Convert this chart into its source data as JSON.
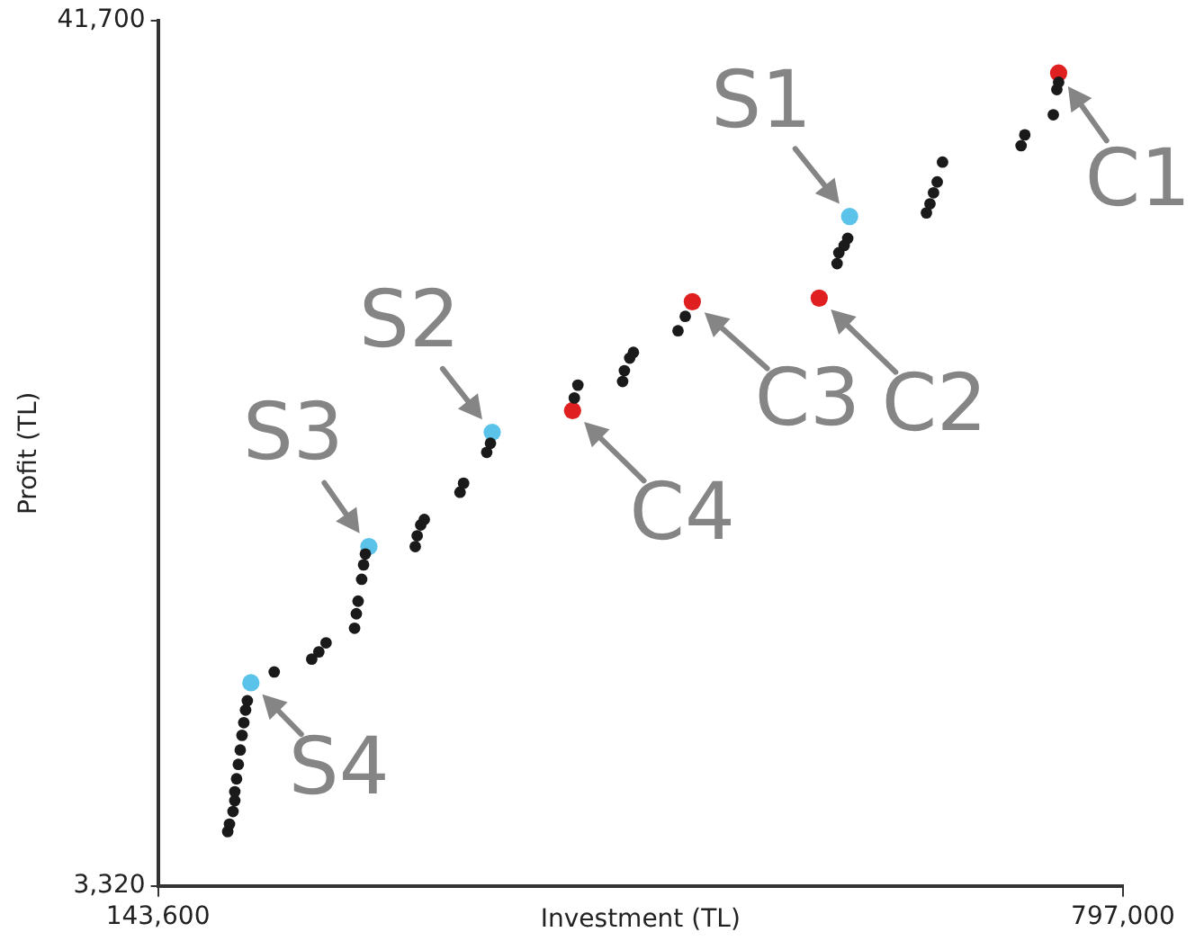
{
  "chart_data": {
    "type": "scatter",
    "xlabel": "Investment (TL)",
    "ylabel": "Profit (TL)",
    "xlim": [
      143600,
      797000
    ],
    "ylim": [
      3320,
      41700
    ],
    "xticks": [
      {
        "value": 143600,
        "label": "143,600"
      },
      {
        "value": 797000,
        "label": "797,000"
      }
    ],
    "yticks": [
      {
        "value": 3320,
        "label": "3,320"
      },
      {
        "value": 41700,
        "label": "41,700"
      }
    ],
    "grid": false,
    "legend": false,
    "marker": "circle",
    "series": [
      {
        "color": "#1a1a1a",
        "x": [
          190800,
          192000,
          194400,
          195600,
          195600,
          196800,
          198000,
          199300,
          200500,
          201700,
          202900,
          204100,
          222300,
          247700,
          252500,
          257400,
          276700,
          277900,
          279100,
          281500,
          282800,
          284000,
          317800,
          319100,
          321500,
          323900,
          348100,
          350500,
          366200,
          368700,
          425500,
          427900,
          458200,
          459400,
          463000,
          465500,
          495700,
          500600,
          603400,
          604600,
          608200,
          610600,
          663900,
          666300,
          668700,
          671200,
          674800,
          728000,
          730500,
          749800,
          752200,
          753400
        ],
        "values": [
          5730,
          6060,
          6620,
          7100,
          7500,
          8070,
          8710,
          9350,
          10000,
          10560,
          11120,
          11530,
          12810,
          13380,
          13700,
          14100,
          14750,
          15390,
          15950,
          16920,
          17560,
          18040,
          18370,
          18850,
          19330,
          19570,
          20780,
          21180,
          22550,
          22950,
          24960,
          25530,
          25690,
          26170,
          26730,
          26980,
          27940,
          28580,
          30920,
          31400,
          31720,
          32040,
          33170,
          33570,
          34060,
          34540,
          35420,
          36150,
          36630,
          37520,
          38640,
          38960
        ]
      },
      {
        "color": "#e02020",
        "x": [
          753400,
          591300,
          505400,
          424300
        ],
        "values": [
          39370,
          29390,
          29230,
          24400
        ]
      },
      {
        "color": "#5bc3ea",
        "x": [
          611900,
          369900,
          286400,
          206500
        ],
        "values": [
          33010,
          23440,
          18370,
          12330
        ]
      }
    ],
    "annotations": [
      {
        "text": "C1",
        "x": 753400,
        "y": 39370
      },
      {
        "text": "C2",
        "x": 591300,
        "y": 29390
      },
      {
        "text": "C3",
        "x": 505400,
        "y": 29230
      },
      {
        "text": "C4",
        "x": 424300,
        "y": 24400
      },
      {
        "text": "S1",
        "x": 611900,
        "y": 33010
      },
      {
        "text": "S2",
        "x": 369900,
        "y": 23440
      },
      {
        "text": "S3",
        "x": 286400,
        "y": 18370
      },
      {
        "text": "S4",
        "x": 206500,
        "y": 12330
      }
    ]
  }
}
